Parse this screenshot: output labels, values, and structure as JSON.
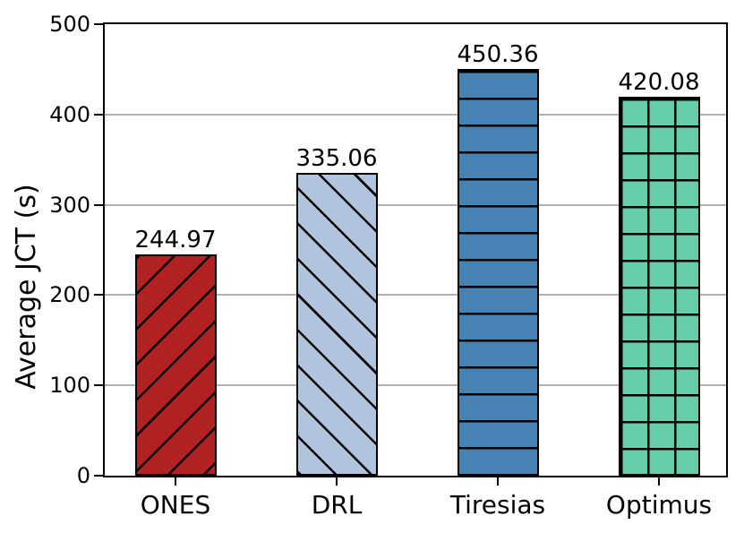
{
  "chart_data": {
    "type": "bar",
    "title": "",
    "xlabel": "",
    "ylabel": "Average JCT (s)",
    "ylim": [
      0,
      500
    ],
    "ytick_values": [
      0,
      100,
      200,
      300,
      400,
      500
    ],
    "ytick_labels": [
      "0",
      "100",
      "200",
      "300",
      "400",
      "500"
    ],
    "grid": "horizontal",
    "legend": "none",
    "categories": [
      "ONES",
      "DRL",
      "Tiresias",
      "Optimus"
    ],
    "values": [
      244.97,
      335.06,
      450.36,
      420.08
    ],
    "series": [
      {
        "category": "ONES",
        "value": 244.97,
        "label": "244.97",
        "fill": "#b22222",
        "hatch": "/",
        "edge": "#000000"
      },
      {
        "category": "DRL",
        "value": 335.06,
        "label": "335.06",
        "fill": "#b0c4de",
        "hatch": "\\",
        "edge": "#000000"
      },
      {
        "category": "Tiresias",
        "value": 450.36,
        "label": "450.36",
        "fill": "#4682b4",
        "hatch": "-",
        "edge": "#000000"
      },
      {
        "category": "Optimus",
        "value": 420.08,
        "label": "420.08",
        "fill": "#66cdaa",
        "hatch": "+",
        "edge": "#000000"
      }
    ]
  },
  "colors": {
    "background": "#ffffff",
    "spine": "#000000",
    "gridline": "#b0b0b0",
    "text": "#000000"
  }
}
